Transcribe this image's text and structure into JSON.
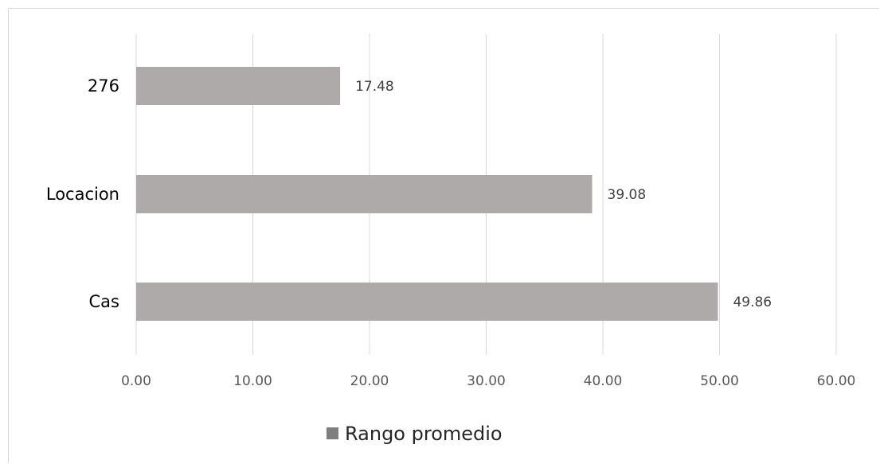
{
  "chart_data": {
    "type": "bar",
    "orientation": "horizontal",
    "categories": [
      "276",
      "Locacion",
      "Cas"
    ],
    "series": [
      {
        "name": "Rango promedio",
        "values": [
          17.48,
          39.08,
          49.86
        ],
        "labels": [
          "17.48",
          "39.08",
          "49.86"
        ],
        "color": "#aeaaaa"
      }
    ],
    "xlim": [
      0,
      60
    ],
    "x_ticks": [
      "0.00",
      "10.00",
      "20.00",
      "30.00",
      "40.00",
      "50.00",
      "60.00"
    ],
    "grid": true,
    "legend_position": "bottom",
    "legend_swatch_color": "#7f7f7f",
    "gridline_color": "#d9d9d9"
  }
}
